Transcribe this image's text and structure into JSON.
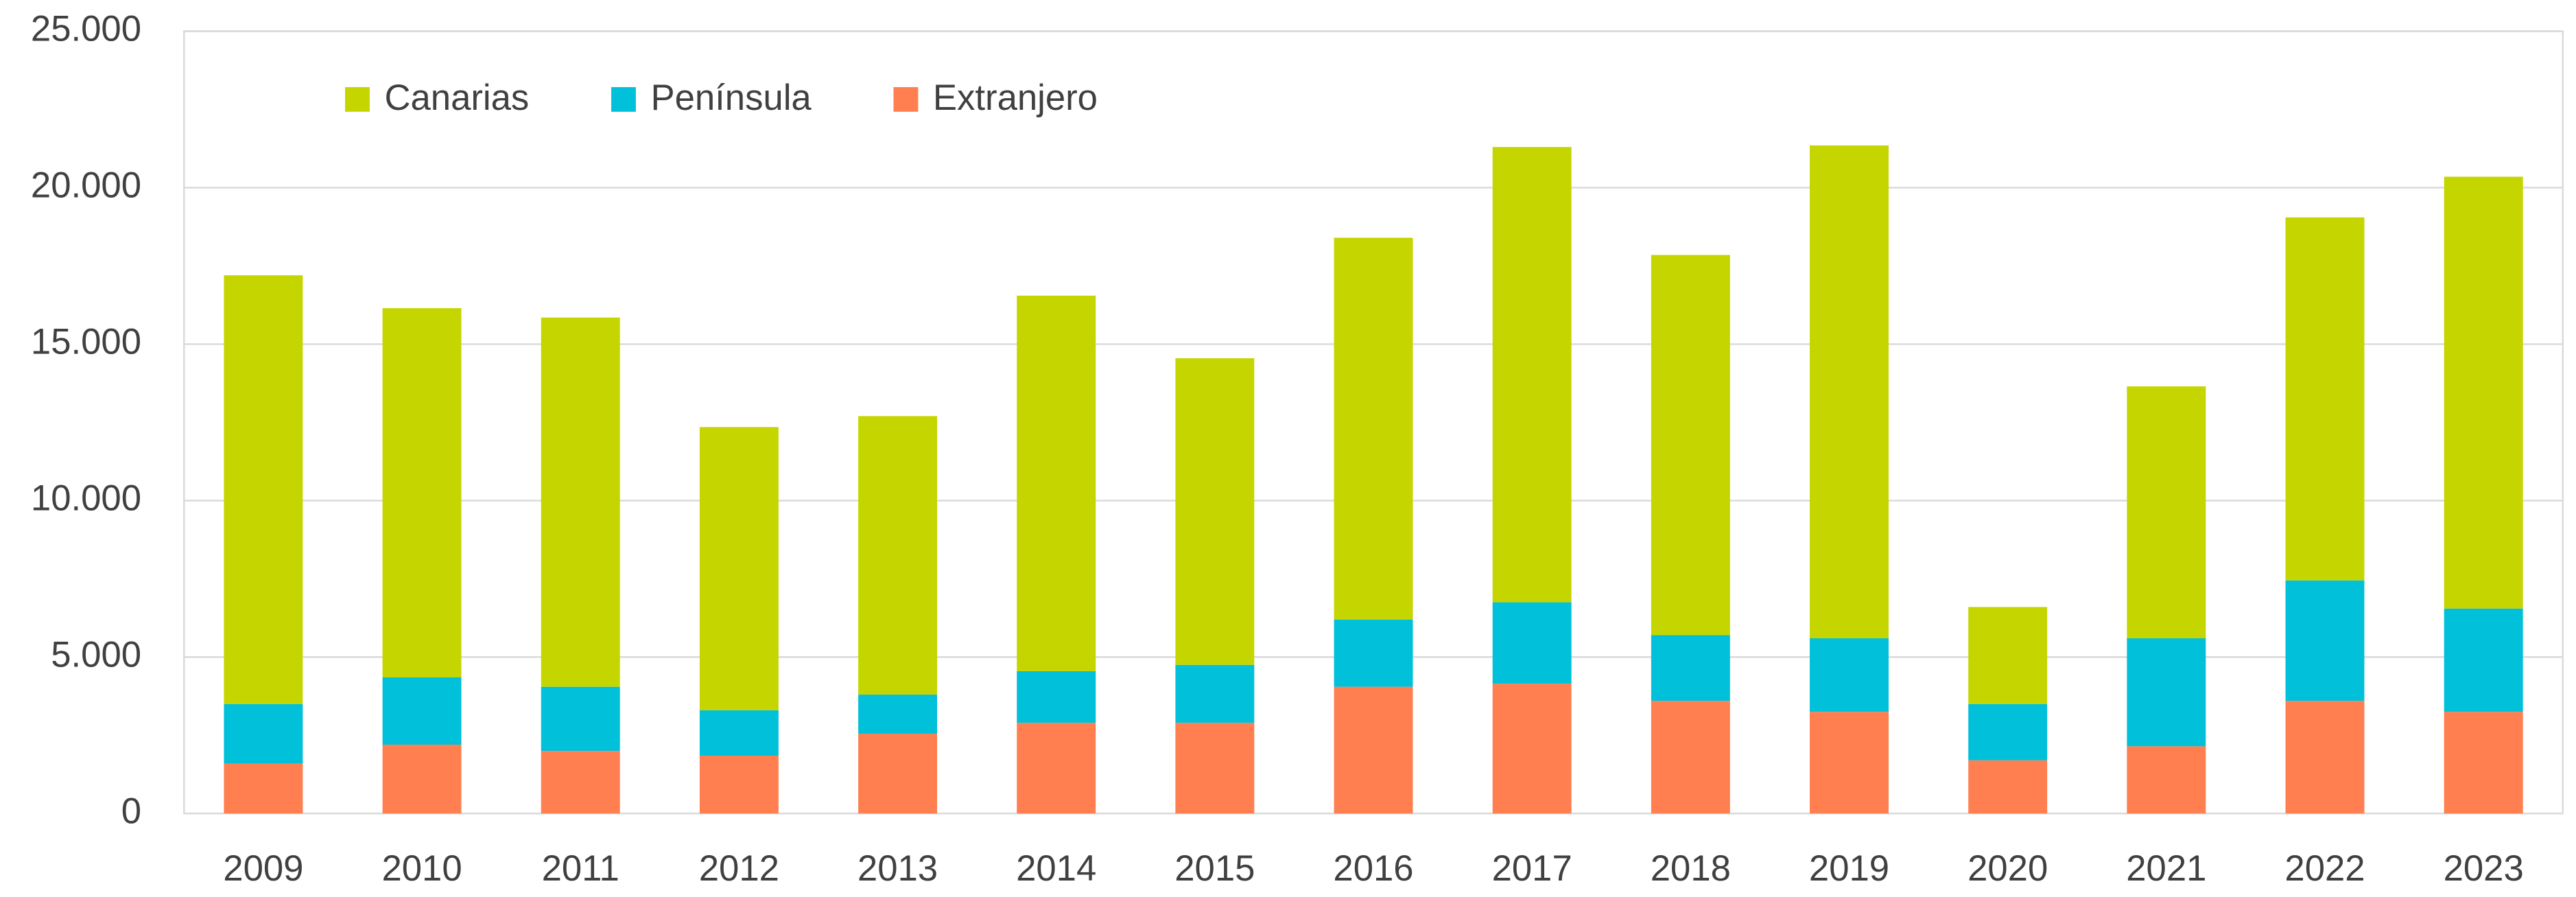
{
  "chart_data": {
    "type": "stacked_bar",
    "categories": [
      "2009",
      "2010",
      "2011",
      "2012",
      "2013",
      "2014",
      "2015",
      "2016",
      "2017",
      "2018",
      "2019",
      "2020",
      "2021",
      "2022",
      "2023"
    ],
    "series": [
      {
        "name": "Extranjero",
        "color": "#ff7f50",
        "values": [
          1600,
          2200,
          2000,
          1850,
          2550,
          2900,
          2900,
          4050,
          4150,
          3600,
          3250,
          1700,
          2150,
          3600,
          3250
        ]
      },
      {
        "name": "Península",
        "color": "#00c0da",
        "values": [
          1900,
          2150,
          2050,
          1450,
          1250,
          1650,
          1850,
          2150,
          2600,
          2100,
          2350,
          1800,
          3450,
          3850,
          3300
        ]
      },
      {
        "name": "Canarias",
        "color": "#c5d500",
        "values": [
          13700,
          11800,
          11800,
          9050,
          8900,
          12000,
          9800,
          12200,
          14550,
          12150,
          15750,
          3100,
          8050,
          11600,
          13800
        ]
      }
    ],
    "legend_order": [
      "Canarias",
      "Península",
      "Extranjero"
    ],
    "ylim": [
      0,
      25000
    ],
    "yticks": [
      0,
      {
        "value": 5000,
        "label": "5.000"
      },
      {
        "value": 10000,
        "label": "10.000"
      },
      {
        "value": 15000,
        "label": "15.000"
      },
      {
        "value": 20000,
        "label": "20.000"
      },
      {
        "value": 25000,
        "label": "25.000"
      }
    ],
    "grid": true,
    "legend": "top-left"
  }
}
